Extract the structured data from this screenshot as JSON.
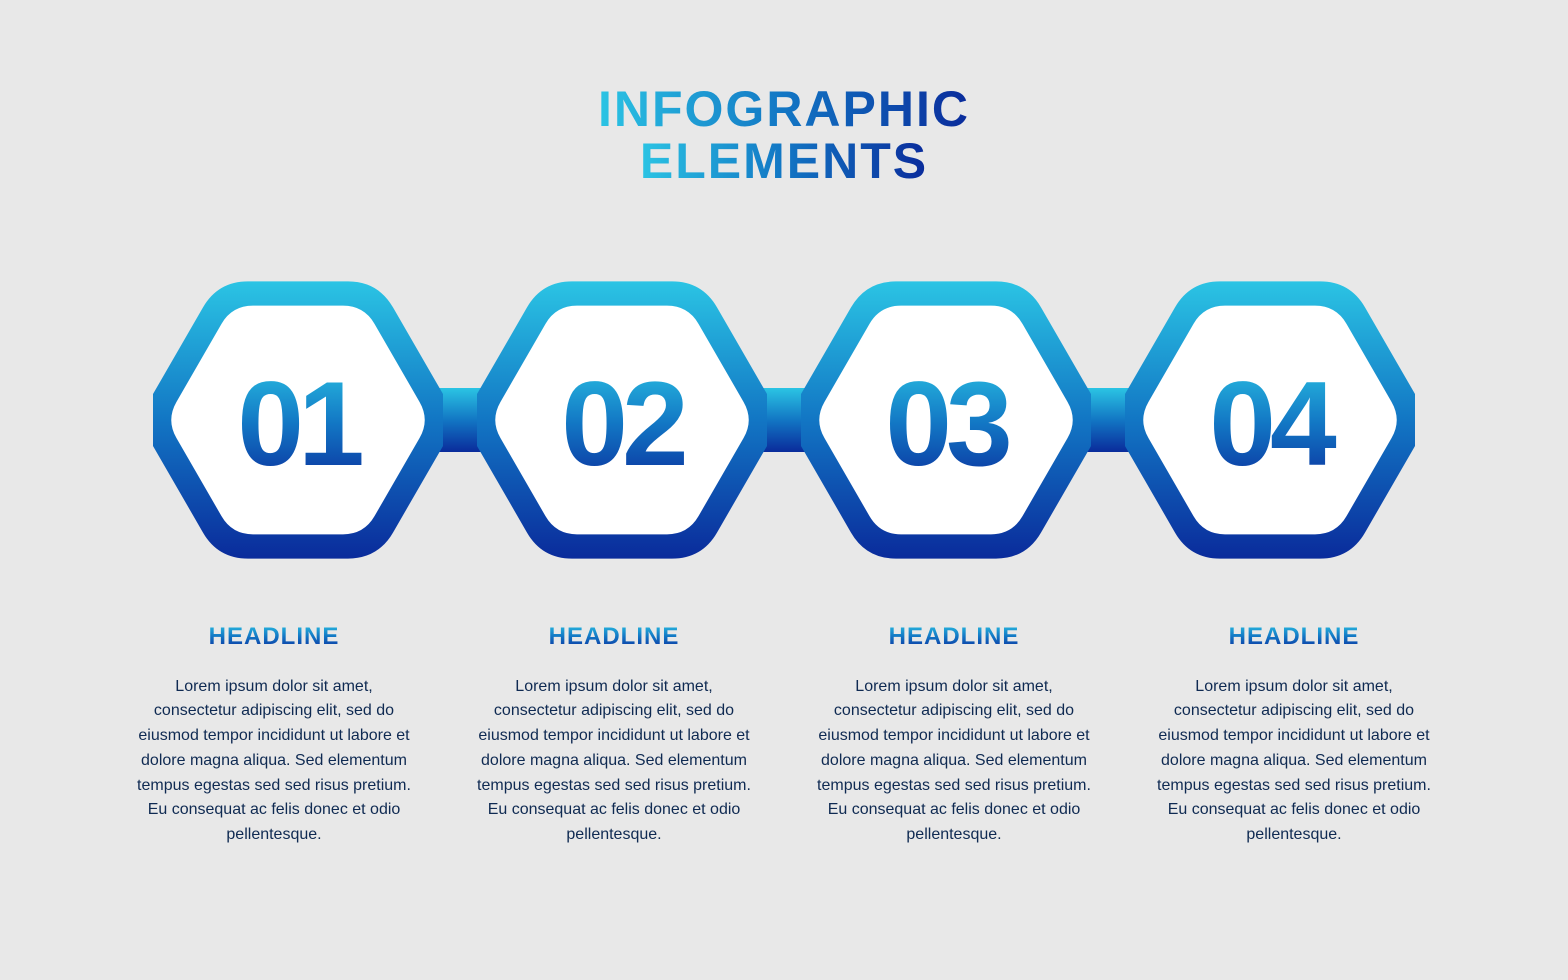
{
  "background_color": "#e8e8e8",
  "gradient": {
    "top": "#2bc4e4",
    "mid": "#1276c4",
    "bottom": "#0a2b9b"
  },
  "title": {
    "line1": "INFOGRAPHIC",
    "line2": "ELEMENTS",
    "fontsize": 50,
    "letter_spacing": 2
  },
  "hexagon": {
    "count": 4,
    "outer_width": 290,
    "outer_height": 320,
    "inner_fill": "#ffffff",
    "border_radius": 30,
    "connector_width": 80,
    "connector_height": 64,
    "number_fontsize": 120
  },
  "steps": [
    {
      "number": "01",
      "headline": "HEADLINE",
      "body": "Lorem ipsum dolor sit amet, consectetur adipiscing elit, sed do eiusmod tempor incididunt ut labore et dolore magna aliqua. Sed elementum tempus egestas sed sed risus pretium. Eu consequat ac felis donec et odio pellentesque."
    },
    {
      "number": "02",
      "headline": "HEADLINE",
      "body": "Lorem ipsum dolor sit amet, consectetur adipiscing elit, sed do eiusmod tempor incididunt ut labore et dolore magna aliqua. Sed elementum tempus egestas sed sed risus pretium. Eu consequat ac felis donec et odio pellentesque."
    },
    {
      "number": "03",
      "headline": "HEADLINE",
      "body": "Lorem ipsum dolor sit amet, consectetur adipiscing elit, sed do eiusmod tempor incididunt ut labore et dolore magna aliqua. Sed elementum tempus egestas sed sed risus pretium. Eu consequat ac felis donec et odio pellentesque."
    },
    {
      "number": "04",
      "headline": "HEADLINE",
      "body": "Lorem ipsum dolor sit amet, consectetur adipiscing elit, sed do eiusmod tempor incididunt ut labore et dolore magna aliqua. Sed elementum tempus egestas sed sed risus pretium. Eu consequat ac felis donec et odio pellentesque."
    }
  ],
  "caption": {
    "headline_fontsize": 24,
    "body_fontsize": 16,
    "body_color": "#0f2a52"
  }
}
